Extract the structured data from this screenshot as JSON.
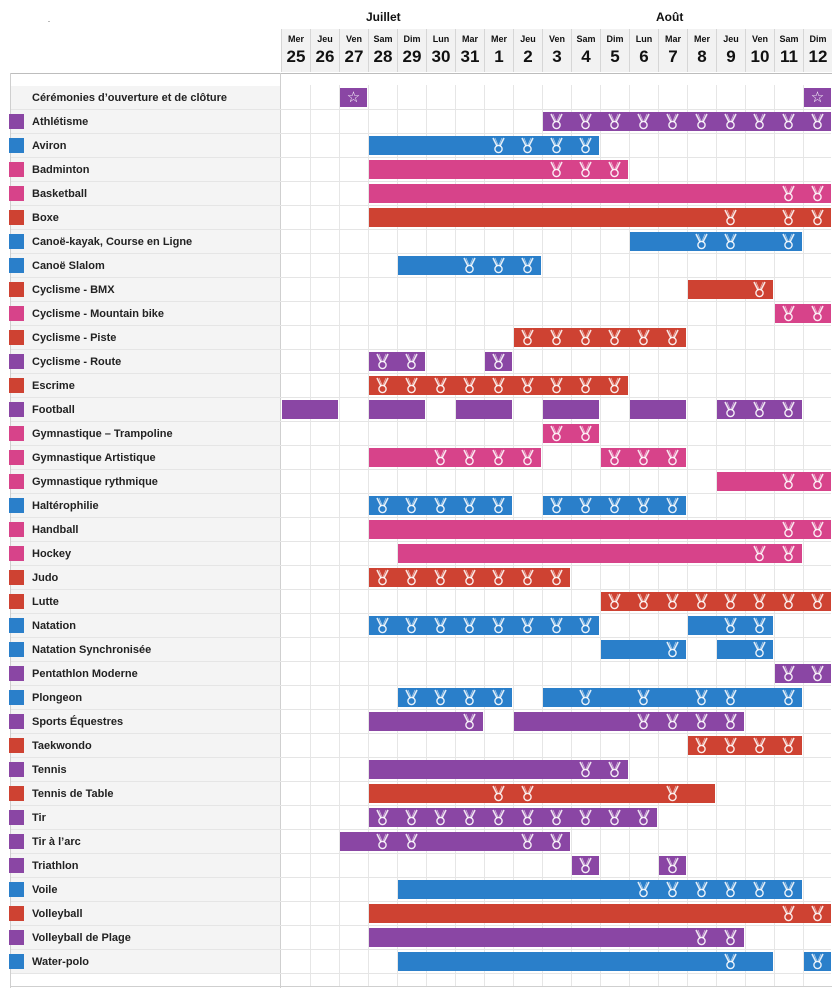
{
  "months": [
    {
      "label": "Juillet",
      "day_index": 3
    },
    {
      "label": "Août",
      "day_index": 13
    }
  ],
  "days": [
    {
      "dow": "Mer",
      "num": "25"
    },
    {
      "dow": "Jeu",
      "num": "26"
    },
    {
      "dow": "Ven",
      "num": "27"
    },
    {
      "dow": "Sam",
      "num": "28"
    },
    {
      "dow": "Dim",
      "num": "29"
    },
    {
      "dow": "Lun",
      "num": "30"
    },
    {
      "dow": "Mar",
      "num": "31"
    },
    {
      "dow": "Mer",
      "num": "1"
    },
    {
      "dow": "Jeu",
      "num": "2"
    },
    {
      "dow": "Ven",
      "num": "3"
    },
    {
      "dow": "Sam",
      "num": "4"
    },
    {
      "dow": "Dim",
      "num": "5"
    },
    {
      "dow": "Lun",
      "num": "6"
    },
    {
      "dow": "Mar",
      "num": "7"
    },
    {
      "dow": "Mer",
      "num": "8"
    },
    {
      "dow": "Jeu",
      "num": "9"
    },
    {
      "dow": "Ven",
      "num": "10"
    },
    {
      "dow": "Sam",
      "num": "11"
    },
    {
      "dow": "Dim",
      "num": "12"
    }
  ],
  "colors": {
    "purple": "#8a46a4",
    "blue": "#2a7fca",
    "pink": "#d7438a",
    "red": "#ce4232",
    "ceremony": "#8a46a4"
  },
  "icons": {
    "medal": "medal-icon",
    "ceremony": "star-icon"
  },
  "sports": [
    {
      "name": "Cérémonies d’ouverture et de clôture",
      "color": "",
      "segments": [
        [
          2,
          2
        ],
        [
          18,
          18
        ]
      ],
      "medals": [],
      "stars": [
        2,
        18
      ]
    },
    {
      "name": "Athlétisme",
      "color": "purple",
      "segments": [
        [
          9,
          18
        ]
      ],
      "medals": [
        9,
        10,
        11,
        12,
        13,
        14,
        15,
        16,
        17,
        18
      ]
    },
    {
      "name": "Aviron",
      "color": "blue",
      "segments": [
        [
          3,
          10
        ]
      ],
      "medals": [
        7,
        8,
        9,
        10
      ]
    },
    {
      "name": "Badminton",
      "color": "pink",
      "segments": [
        [
          3,
          11
        ]
      ],
      "medals": [
        9,
        10,
        11
      ]
    },
    {
      "name": "Basketball",
      "color": "pink",
      "segments": [
        [
          3,
          18
        ]
      ],
      "medals": [
        17,
        18
      ]
    },
    {
      "name": "Boxe",
      "color": "red",
      "segments": [
        [
          3,
          18
        ]
      ],
      "medals": [
        15,
        17,
        18
      ]
    },
    {
      "name": "Canoë-kayak, Course en Ligne",
      "color": "blue",
      "segments": [
        [
          12,
          17
        ]
      ],
      "medals": [
        14,
        15,
        17
      ]
    },
    {
      "name": "Canoë Slalom",
      "color": "blue",
      "segments": [
        [
          4,
          8
        ]
      ],
      "medals": [
        6,
        7,
        8
      ]
    },
    {
      "name": "Cyclisme - BMX",
      "color": "red",
      "segments": [
        [
          14,
          16
        ]
      ],
      "medals": [
        16
      ]
    },
    {
      "name": "Cyclisme - Mountain bike",
      "color": "pink",
      "segments": [
        [
          17,
          18
        ]
      ],
      "medals": [
        17,
        18
      ]
    },
    {
      "name": "Cyclisme - Piste",
      "color": "red",
      "segments": [
        [
          8,
          13
        ]
      ],
      "medals": [
        8,
        9,
        10,
        11,
        12,
        13
      ]
    },
    {
      "name": "Cyclisme - Route",
      "color": "purple",
      "segments": [
        [
          3,
          4
        ],
        [
          7,
          7
        ]
      ],
      "medals": [
        3,
        4,
        7
      ]
    },
    {
      "name": "Escrime",
      "color": "red",
      "segments": [
        [
          3,
          11
        ]
      ],
      "medals": [
        3,
        4,
        5,
        6,
        7,
        8,
        9,
        10,
        11
      ]
    },
    {
      "name": "Football",
      "color": "purple",
      "segments": [
        [
          0,
          1
        ],
        [
          3,
          4
        ],
        [
          6,
          7
        ],
        [
          9,
          10
        ],
        [
          12,
          13
        ],
        [
          15,
          17
        ]
      ],
      "medals": [
        15,
        16,
        17
      ]
    },
    {
      "name": "Gymnastique – Trampoline",
      "color": "pink",
      "segments": [
        [
          9,
          10
        ]
      ],
      "medals": [
        9,
        10
      ]
    },
    {
      "name": "Gymnastique Artistique",
      "color": "pink",
      "segments": [
        [
          3,
          8
        ],
        [
          11,
          13
        ]
      ],
      "medals": [
        5,
        6,
        7,
        8,
        11,
        12,
        13
      ]
    },
    {
      "name": "Gymnastique rythmique",
      "color": "pink",
      "segments": [
        [
          15,
          18
        ]
      ],
      "medals": [
        17,
        18
      ]
    },
    {
      "name": "Haltérophilie",
      "color": "blue",
      "segments": [
        [
          3,
          7
        ],
        [
          9,
          13
        ]
      ],
      "medals": [
        3,
        4,
        5,
        6,
        7,
        9,
        10,
        11,
        12,
        13
      ]
    },
    {
      "name": "Handball",
      "color": "pink",
      "segments": [
        [
          3,
          18
        ]
      ],
      "medals": [
        17,
        18
      ]
    },
    {
      "name": "Hockey",
      "color": "pink",
      "segments": [
        [
          4,
          17
        ]
      ],
      "medals": [
        16,
        17
      ]
    },
    {
      "name": "Judo",
      "color": "red",
      "segments": [
        [
          3,
          9
        ]
      ],
      "medals": [
        3,
        4,
        5,
        6,
        7,
        8,
        9
      ]
    },
    {
      "name": "Lutte",
      "color": "red",
      "segments": [
        [
          11,
          18
        ]
      ],
      "medals": [
        11,
        12,
        13,
        14,
        15,
        16,
        17,
        18
      ]
    },
    {
      "name": "Natation",
      "color": "blue",
      "segments": [
        [
          3,
          10
        ],
        [
          14,
          16
        ]
      ],
      "medals": [
        3,
        4,
        5,
        6,
        7,
        8,
        9,
        10,
        15,
        16
      ]
    },
    {
      "name": "Natation Synchronisée",
      "color": "blue",
      "segments": [
        [
          11,
          13
        ],
        [
          15,
          16
        ]
      ],
      "medals": [
        13,
        16
      ]
    },
    {
      "name": "Pentathlon Moderne",
      "color": "purple",
      "segments": [
        [
          17,
          18
        ]
      ],
      "medals": [
        17,
        18
      ]
    },
    {
      "name": "Plongeon",
      "color": "blue",
      "segments": [
        [
          4,
          7
        ],
        [
          9,
          17
        ]
      ],
      "medals": [
        4,
        5,
        6,
        7,
        10,
        12,
        14,
        15,
        17
      ]
    },
    {
      "name": "Sports Équestres",
      "color": "purple",
      "segments": [
        [
          3,
          6
        ],
        [
          8,
          15
        ]
      ],
      "medals": [
        6,
        12,
        13,
        14,
        15
      ]
    },
    {
      "name": "Taekwondo",
      "color": "red",
      "segments": [
        [
          14,
          17
        ]
      ],
      "medals": [
        14,
        15,
        16,
        17
      ]
    },
    {
      "name": "Tennis",
      "color": "purple",
      "segments": [
        [
          3,
          11
        ]
      ],
      "medals": [
        10,
        11
      ]
    },
    {
      "name": "Tennis de Table",
      "color": "red",
      "segments": [
        [
          3,
          14
        ]
      ],
      "medals": [
        7,
        8,
        13
      ]
    },
    {
      "name": "Tir",
      "color": "purple",
      "segments": [
        [
          3,
          12
        ]
      ],
      "medals": [
        3,
        4,
        5,
        6,
        7,
        8,
        9,
        10,
        11,
        12
      ]
    },
    {
      "name": "Tir à l’arc",
      "color": "purple",
      "segments": [
        [
          2,
          9
        ]
      ],
      "medals": [
        3,
        4,
        8,
        9
      ]
    },
    {
      "name": "Triathlon",
      "color": "purple",
      "segments": [
        [
          10,
          10
        ],
        [
          13,
          13
        ]
      ],
      "medals": [
        10,
        13
      ]
    },
    {
      "name": "Voile",
      "color": "blue",
      "segments": [
        [
          4,
          17
        ]
      ],
      "medals": [
        12,
        13,
        14,
        15,
        16,
        17
      ]
    },
    {
      "name": "Volleyball",
      "color": "red",
      "segments": [
        [
          3,
          18
        ]
      ],
      "medals": [
        17,
        18
      ]
    },
    {
      "name": "Volleyball de Plage",
      "color": "purple",
      "segments": [
        [
          3,
          15
        ]
      ],
      "medals": [
        14,
        15
      ]
    },
    {
      "name": "Water-polo",
      "color": "blue",
      "segments": [
        [
          4,
          16
        ],
        [
          18,
          18
        ]
      ],
      "medals": [
        15,
        18
      ]
    }
  ]
}
